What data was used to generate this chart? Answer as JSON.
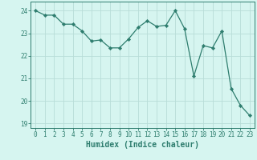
{
  "x": [
    0,
    1,
    2,
    3,
    4,
    5,
    6,
    7,
    8,
    9,
    10,
    11,
    12,
    13,
    14,
    15,
    16,
    17,
    18,
    19,
    20,
    21,
    22,
    23
  ],
  "y": [
    24.0,
    23.8,
    23.8,
    23.4,
    23.4,
    23.1,
    22.65,
    22.7,
    22.35,
    22.35,
    22.75,
    23.25,
    23.55,
    23.3,
    23.35,
    24.0,
    23.2,
    21.1,
    22.45,
    22.35,
    23.1,
    20.55,
    19.8,
    19.35
  ],
  "line_color": "#2e7d6e",
  "marker": "D",
  "marker_size": 2.2,
  "bg_color": "#d6f5f0",
  "grid_color": "#b8ddd8",
  "xlabel": "Humidex (Indice chaleur)",
  "xlim": [
    -0.5,
    23.5
  ],
  "ylim": [
    18.8,
    24.4
  ],
  "yticks": [
    19,
    20,
    21,
    22,
    23,
    24
  ],
  "xticks": [
    0,
    1,
    2,
    3,
    4,
    5,
    6,
    7,
    8,
    9,
    10,
    11,
    12,
    13,
    14,
    15,
    16,
    17,
    18,
    19,
    20,
    21,
    22,
    23
  ],
  "tick_color": "#2e7d6e",
  "label_fontsize": 5.5,
  "xlabel_fontsize": 7.0
}
